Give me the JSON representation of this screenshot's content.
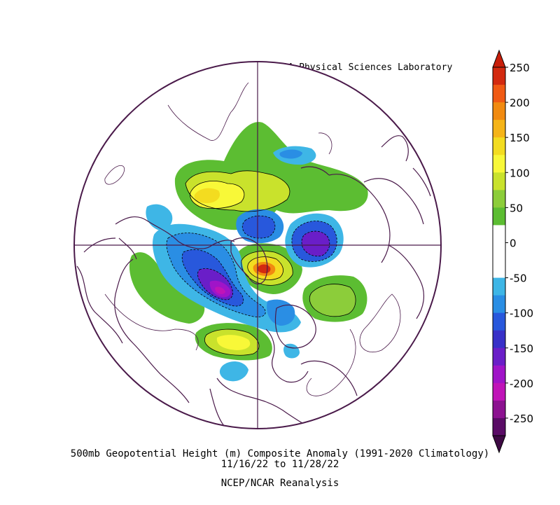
{
  "credit": "NOAA Physical Sciences Laboratory",
  "caption": {
    "line1": "500mb Geopotential Height (m) Composite Anomaly (1991-2020 Climatology)",
    "line2": "11/16/22   to 11/28/22",
    "line3": "NCEP/NCAR Reanalysis"
  },
  "map": {
    "projection": "north-polar-stereographic",
    "background": "#ffffff",
    "line_color": "#4a1a4a"
  },
  "colorbar": {
    "levels": [
      {
        "label": "250",
        "color": "#d32a10"
      },
      {
        "label": "",
        "color": "#f05a14"
      },
      {
        "label": "200",
        "color": "#f18a10"
      },
      {
        "label": "",
        "color": "#f5b418"
      },
      {
        "label": "150",
        "color": "#f3dc20"
      },
      {
        "label": "",
        "color": "#f8f838"
      },
      {
        "label": "100",
        "color": "#c9e22c"
      },
      {
        "label": "",
        "color": "#8ccd3a"
      },
      {
        "label": "50",
        "color": "#5cbd32"
      },
      {
        "label": "",
        "color": "#ffffff"
      },
      {
        "label": "0",
        "color": "#ffffff"
      },
      {
        "label": "",
        "color": "#ffffff"
      },
      {
        "label": "-50",
        "color": "#3eb6e6"
      },
      {
        "label": "",
        "color": "#2a8ee4"
      },
      {
        "label": "-100",
        "color": "#2858dc"
      },
      {
        "label": "",
        "color": "#3830c8"
      },
      {
        "label": "-150",
        "color": "#6a1ec8"
      },
      {
        "label": "",
        "color": "#a014c8"
      },
      {
        "label": "-200",
        "color": "#c014b8"
      },
      {
        "label": "",
        "color": "#8c1290"
      },
      {
        "label": "-250",
        "color": "#5a0c66"
      }
    ],
    "top_arrow_color": "#c81e0a",
    "bottom_arrow_color": "#3e0a44"
  }
}
